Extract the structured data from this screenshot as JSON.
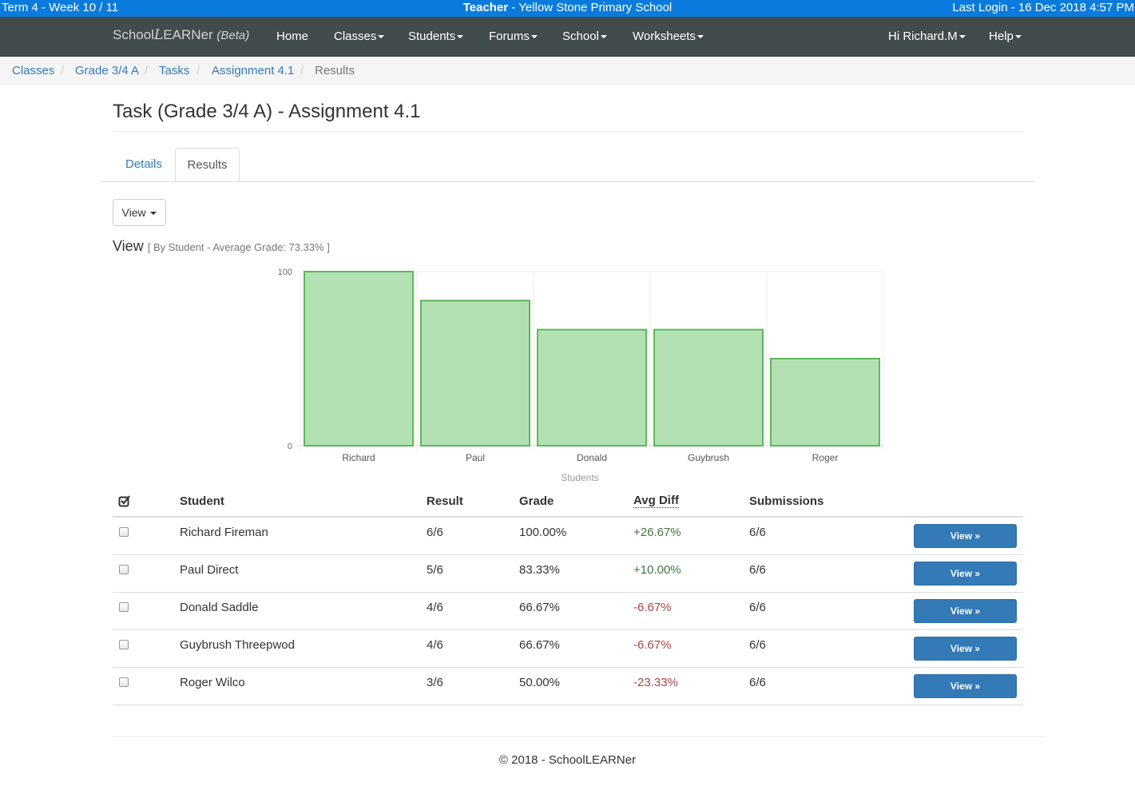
{
  "infobar": {
    "term": "Term 4 - Week 10 / 11",
    "role": "Teacher",
    "school": " - Yellow Stone Primary School",
    "last_login": "Last Login - 16 Dec 2018 4:57 PM"
  },
  "navbar": {
    "brand_prefix": "School",
    "brand_logo_letter": "L",
    "brand_suffix": "EARNer",
    "brand_beta": "(Beta)",
    "items": [
      {
        "label": "Home",
        "dropdown": false
      },
      {
        "label": "Classes",
        "dropdown": true
      },
      {
        "label": "Students",
        "dropdown": true
      },
      {
        "label": "Forums",
        "dropdown": true
      },
      {
        "label": "School",
        "dropdown": true
      },
      {
        "label": "Worksheets",
        "dropdown": true
      }
    ],
    "user": "Hi Richard.M",
    "help": "Help"
  },
  "breadcrumb": {
    "items": [
      "Classes",
      "Grade 3/4 A",
      "Tasks",
      "Assignment 4.1"
    ],
    "active": "Results",
    "separator": "/"
  },
  "page": {
    "title": "Task (Grade 3/4 A) - Assignment 4.1",
    "tabs": [
      "Details",
      "Results"
    ],
    "view_button": "View",
    "view_heading": "View",
    "view_sub": "[ By Student - Average Grade: 73.33% ]"
  },
  "chart_data": {
    "type": "bar",
    "categories": [
      "Richard",
      "Paul",
      "Donald",
      "Guybrush",
      "Roger"
    ],
    "values": [
      100,
      83.33,
      66.67,
      66.67,
      50
    ],
    "xlabel": "Students",
    "ylabel": "",
    "ylim": [
      0,
      100
    ],
    "yticks": [
      "0",
      "100"
    ],
    "grid": true,
    "bar_fill": "#b3e0b3",
    "bar_stroke": "#5cb85c"
  },
  "table": {
    "headers": [
      "Student",
      "Result",
      "Grade",
      "Avg Diff",
      "Submissions"
    ],
    "rows": [
      {
        "student": "Richard Fireman",
        "result": "6/6",
        "grade": "100.00%",
        "diff": "+26.67%",
        "diff_sign": "pos",
        "submissions": "6/6",
        "action": "View »"
      },
      {
        "student": "Paul Direct",
        "result": "5/6",
        "grade": "83.33%",
        "diff": "+10.00%",
        "diff_sign": "pos",
        "submissions": "6/6",
        "action": "View »"
      },
      {
        "student": "Donald Saddle",
        "result": "4/6",
        "grade": "66.67%",
        "diff": "-6.67%",
        "diff_sign": "neg",
        "submissions": "6/6",
        "action": "View »"
      },
      {
        "student": "Guybrush Threepwod",
        "result": "4/6",
        "grade": "66.67%",
        "diff": "-6.67%",
        "diff_sign": "neg",
        "submissions": "6/6",
        "action": "View »"
      },
      {
        "student": "Roger Wilco",
        "result": "3/6",
        "grade": "50.00%",
        "diff": "-23.33%",
        "diff_sign": "neg",
        "submissions": "6/6",
        "action": "View »"
      }
    ]
  },
  "footer": "© 2018 - SchoolLEARNer",
  "colors": {
    "infobar": "#0a7bdc",
    "navbar": "#424c4c",
    "link": "#337ab7",
    "positive": "#3c763d",
    "negative": "#a94442"
  }
}
